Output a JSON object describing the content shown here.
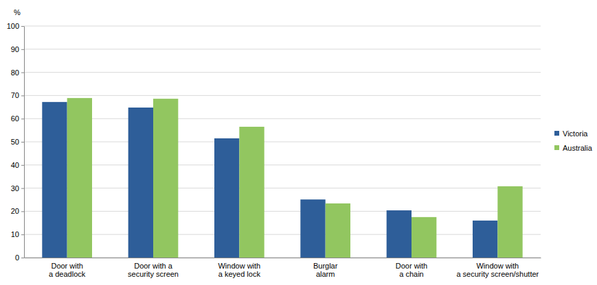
{
  "chart_data": {
    "type": "bar",
    "y_label": "%",
    "categories": [
      "Door with\na deadlock",
      "Door with a\nsecurity screen",
      "Window with\na keyed lock",
      "Burglar\nalarm",
      "Door with\na chain",
      "Window with\na security screen/shutter"
    ],
    "series": [
      {
        "name": "Victoria",
        "color": "#2e5e99",
        "values": [
          67.2,
          64.8,
          51.5,
          25.1,
          20.4,
          16.0
        ]
      },
      {
        "name": "Australia",
        "color": "#92c660",
        "values": [
          68.9,
          68.6,
          56.5,
          23.4,
          17.5,
          30.8
        ]
      }
    ],
    "ylim": [
      0,
      100
    ],
    "yticks": [
      0,
      10,
      20,
      30,
      40,
      50,
      60,
      70,
      80,
      90,
      100
    ],
    "grid": true,
    "legend": "right"
  }
}
